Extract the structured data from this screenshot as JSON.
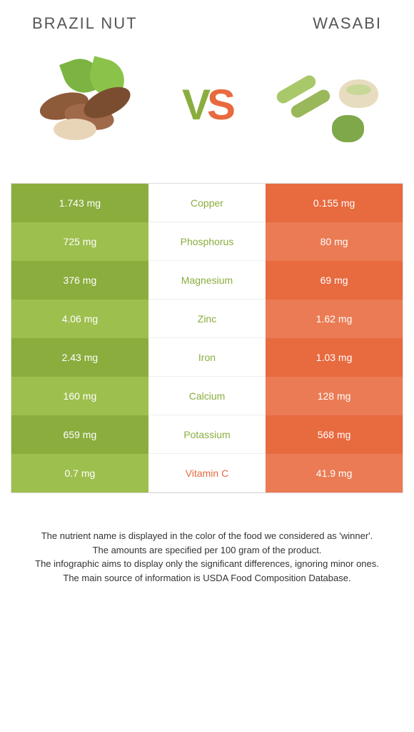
{
  "titles": {
    "left": "BRAZIL NUT",
    "right": "WASABI"
  },
  "vs": {
    "v": "V",
    "s": "S"
  },
  "colors": {
    "green_dark": "#8aad3e",
    "green_light": "#9dbf4e",
    "orange_dark": "#e86a3f",
    "orange_light": "#ea7b54"
  },
  "rows": [
    {
      "left": "1.743 mg",
      "label": "Copper",
      "right": "0.155 mg",
      "winner": "left"
    },
    {
      "left": "725 mg",
      "label": "Phosphorus",
      "right": "80 mg",
      "winner": "left"
    },
    {
      "left": "376 mg",
      "label": "Magnesium",
      "right": "69 mg",
      "winner": "left"
    },
    {
      "left": "4.06 mg",
      "label": "Zinc",
      "right": "1.62 mg",
      "winner": "left"
    },
    {
      "left": "2.43 mg",
      "label": "Iron",
      "right": "1.03 mg",
      "winner": "left"
    },
    {
      "left": "160 mg",
      "label": "Calcium",
      "right": "128 mg",
      "winner": "left"
    },
    {
      "left": "659 mg",
      "label": "Potassium",
      "right": "568 mg",
      "winner": "left"
    },
    {
      "left": "0.7 mg",
      "label": "Vitamin C",
      "right": "41.9 mg",
      "winner": "right"
    }
  ],
  "footer": [
    "The nutrient name is displayed in the color of the food we considered as 'winner'.",
    "The amounts are specified per 100 gram of the product.",
    "The infographic aims to display only the significant differences, ignoring minor ones.",
    "The main source of information is USDA Food Composition Database."
  ]
}
